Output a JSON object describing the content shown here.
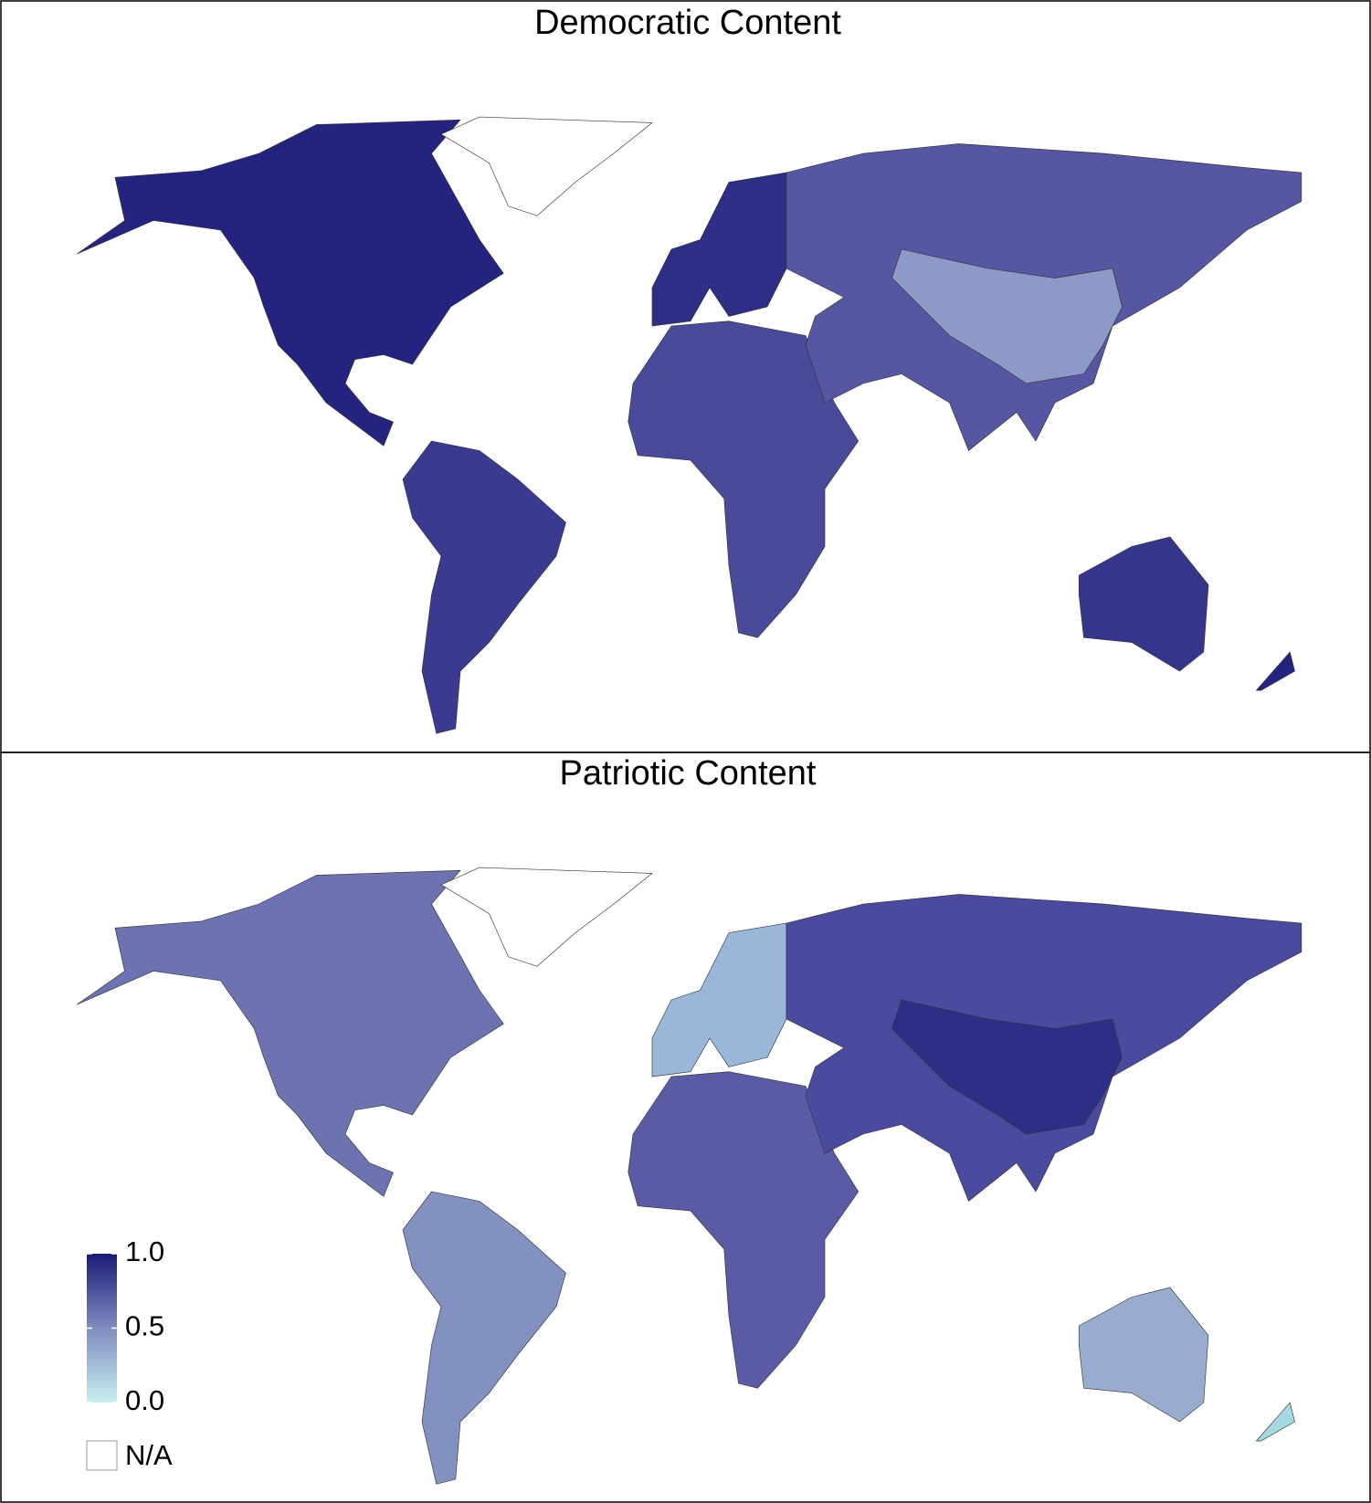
{
  "panels": [
    {
      "title": "Democratic Content"
    },
    {
      "title": "Patriotic Content"
    }
  ],
  "legend": {
    "lim": [
      0,
      1
    ],
    "ticks": [
      {
        "value": 0,
        "label": "0.0"
      },
      {
        "value": 0.5,
        "label": "0.5"
      },
      {
        "value": 1,
        "label": "1.0"
      }
    ],
    "colors": [
      "#c8eef0",
      "#7f8cc0",
      "#1b1b78"
    ],
    "na_label": "N/A"
  }
}
